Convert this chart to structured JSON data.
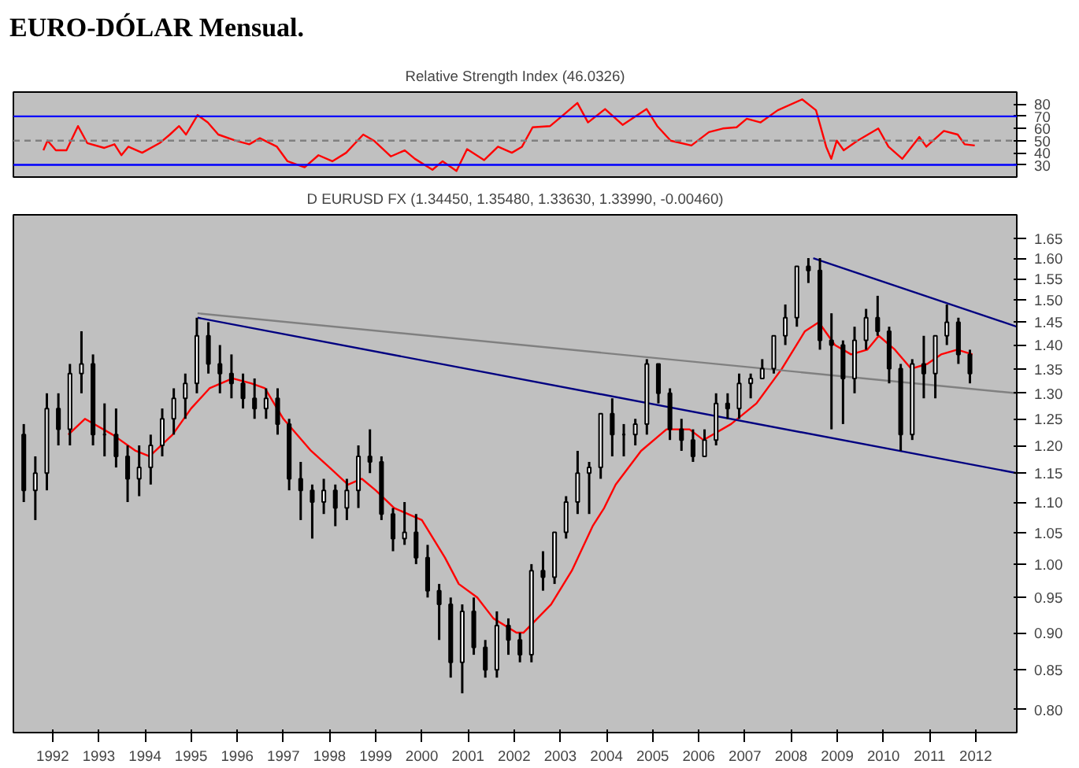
{
  "chart_data": [
    {
      "type": "line",
      "title": "EURO-DÓLAR Mensual.",
      "subtitle": "Relative Strength Index (46.0326)",
      "xlim": [
        1991.15,
        2012.89
      ],
      "ylim": [
        20,
        90
      ],
      "yticks": [
        30,
        40,
        50,
        60,
        70,
        80
      ],
      "tick_labels": "y",
      "series": [
        {
          "color": "#ff0000",
          "x": [
            1991.8,
            1991.89,
            1992.07,
            1992.3,
            1992.55,
            1992.75,
            1993.12,
            1993.34,
            1993.49,
            1993.64,
            1993.94,
            1994.32,
            1994.54,
            1994.74,
            1994.89,
            1995.14,
            1995.36,
            1995.59,
            1995.96,
            1996.26,
            1996.49,
            1996.86,
            1997.09,
            1997.46,
            1997.76,
            1998.06,
            1998.36,
            1998.73,
            1998.96,
            1999.33,
            1999.63,
            1999.85,
            2000.23,
            2000.45,
            2000.75,
            2000.98,
            2001.35,
            2001.65,
            2001.95,
            2002.17,
            2002.4,
            2002.78,
            2003.03,
            2003.37,
            2003.6,
            2003.97,
            2004.35,
            2004.87,
            2005.1,
            2005.39,
            2005.84,
            2006.22,
            2006.52,
            2006.82,
            2007.04,
            2007.34,
            2007.71,
            2008.24,
            2008.54,
            2008.76,
            2008.87,
            2008.99,
            2009.14,
            2009.44,
            2009.89,
            2010.11,
            2010.41,
            2010.78,
            2010.93,
            2011.31,
            2011.61,
            2011.76,
            2011.98
          ],
          "values": [
            42,
            50,
            42,
            42,
            62,
            48,
            44,
            47,
            38,
            45,
            40,
            48,
            55,
            62,
            55,
            71,
            65,
            55,
            50,
            47,
            52,
            45,
            33,
            28,
            38,
            33,
            40,
            55,
            50,
            37,
            42,
            35,
            26,
            33,
            25,
            43,
            34,
            45,
            40,
            45,
            61,
            62,
            70,
            81,
            65,
            76,
            63,
            76,
            62,
            50,
            46,
            57,
            60,
            61,
            68,
            65,
            75,
            84,
            75,
            45,
            35,
            50,
            42,
            50,
            60,
            45,
            35,
            53,
            45,
            58,
            55,
            47,
            46
          ]
        }
      ],
      "ref_lines": [
        {
          "axis": "y",
          "value": 70,
          "color": "#0000ff",
          "line_style": "solid"
        },
        {
          "axis": "y",
          "value": 30,
          "color": "#0000ff",
          "line_style": "solid"
        },
        {
          "axis": "y",
          "value": 50,
          "color": "#808080",
          "line_style": "dashed"
        }
      ]
    },
    {
      "type": "candlestick",
      "subtitle": "D EURUSD FX (1.34450, 1.35480, 1.33630, 1.33990, -0.00460)",
      "log": true,
      "xlim": [
        1991.15,
        2012.89
      ],
      "ylim": [
        0.772,
        1.71
      ],
      "xticks": [
        1992,
        1993,
        1994,
        1995,
        1996,
        1997,
        1998,
        1999,
        2000,
        2001,
        2002,
        2003,
        2004,
        2005,
        2006,
        2007,
        2008,
        2009,
        2010,
        2011,
        2012
      ],
      "yticks": [
        {
          "value": 0.8,
          "label": "0.80"
        },
        0.85,
        {
          "value": 0.9,
          "label": "0.90"
        },
        0.95,
        {
          "value": 1.0,
          "label": "1.00"
        },
        1.05,
        {
          "value": 1.1,
          "label": "1.10"
        },
        1.15,
        {
          "value": 1.2,
          "label": "1.20"
        },
        1.25,
        {
          "value": 1.3,
          "label": "1.30"
        },
        1.35,
        {
          "value": 1.4,
          "label": "1.40"
        },
        1.45,
        {
          "value": 1.5,
          "label": "1.50"
        },
        1.55,
        {
          "value": 1.6,
          "label": "1.60"
        },
        1.65
      ],
      "color": "#000000",
      "x": [
        1991.375,
        1991.625,
        1991.875,
        1992.125,
        1992.375,
        1992.625,
        1992.875,
        1993.125,
        1993.375,
        1993.625,
        1993.875,
        1994.125,
        1994.375,
        1994.625,
        1994.875,
        1995.125,
        1995.375,
        1995.625,
        1995.875,
        1996.125,
        1996.375,
        1996.625,
        1996.875,
        1997.125,
        1997.375,
        1997.625,
        1997.875,
        1998.125,
        1998.375,
        1998.625,
        1998.875,
        1999.125,
        1999.375,
        1999.625,
        1999.875,
        2000.125,
        2000.375,
        2000.625,
        2000.875,
        2001.125,
        2001.375,
        2001.625,
        2001.875,
        2002.125,
        2002.375,
        2002.625,
        2002.875,
        2003.125,
        2003.375,
        2003.625,
        2003.875,
        2004.125,
        2004.375,
        2004.625,
        2004.875,
        2005.125,
        2005.375,
        2005.625,
        2005.875,
        2006.125,
        2006.375,
        2006.625,
        2006.875,
        2007.125,
        2007.375,
        2007.625,
        2007.875,
        2008.125,
        2008.375,
        2008.625,
        2008.875,
        2009.125,
        2009.375,
        2009.625,
        2009.875,
        2010.125,
        2010.375,
        2010.625,
        2010.875,
        2011.125,
        2011.375,
        2011.625,
        2011.875
      ],
      "ohlc": [
        [
          1.22,
          1.24,
          1.1,
          1.12
        ],
        [
          1.12,
          1.18,
          1.07,
          1.15
        ],
        [
          1.15,
          1.3,
          1.12,
          1.27
        ],
        [
          1.27,
          1.3,
          1.2,
          1.23
        ],
        [
          1.23,
          1.36,
          1.2,
          1.34
        ],
        [
          1.34,
          1.43,
          1.3,
          1.36
        ],
        [
          1.36,
          1.38,
          1.2,
          1.22
        ],
        [
          1.22,
          1.28,
          1.18,
          1.22
        ],
        [
          1.22,
          1.27,
          1.16,
          1.18
        ],
        [
          1.18,
          1.2,
          1.1,
          1.14
        ],
        [
          1.14,
          1.2,
          1.11,
          1.16
        ],
        [
          1.16,
          1.22,
          1.13,
          1.2
        ],
        [
          1.2,
          1.27,
          1.18,
          1.25
        ],
        [
          1.25,
          1.31,
          1.22,
          1.29
        ],
        [
          1.29,
          1.34,
          1.25,
          1.32
        ],
        [
          1.32,
          1.46,
          1.3,
          1.42
        ],
        [
          1.42,
          1.45,
          1.34,
          1.36
        ],
        [
          1.36,
          1.4,
          1.3,
          1.34
        ],
        [
          1.34,
          1.38,
          1.29,
          1.32
        ],
        [
          1.32,
          1.34,
          1.27,
          1.29
        ],
        [
          1.29,
          1.33,
          1.25,
          1.27
        ],
        [
          1.27,
          1.31,
          1.25,
          1.29
        ],
        [
          1.29,
          1.31,
          1.22,
          1.24
        ],
        [
          1.24,
          1.25,
          1.12,
          1.14
        ],
        [
          1.14,
          1.17,
          1.07,
          1.12
        ],
        [
          1.12,
          1.13,
          1.04,
          1.1
        ],
        [
          1.1,
          1.14,
          1.08,
          1.12
        ],
        [
          1.12,
          1.13,
          1.06,
          1.09
        ],
        [
          1.09,
          1.14,
          1.07,
          1.12
        ],
        [
          1.12,
          1.2,
          1.09,
          1.18
        ],
        [
          1.18,
          1.23,
          1.15,
          1.17
        ],
        [
          1.17,
          1.18,
          1.07,
          1.08
        ],
        [
          1.08,
          1.09,
          1.02,
          1.04
        ],
        [
          1.04,
          1.1,
          1.03,
          1.05
        ],
        [
          1.05,
          1.08,
          1.0,
          1.01
        ],
        [
          1.01,
          1.03,
          0.95,
          0.96
        ],
        [
          0.96,
          0.97,
          0.89,
          0.94
        ],
        [
          0.94,
          0.95,
          0.84,
          0.86
        ],
        [
          0.86,
          0.94,
          0.82,
          0.93
        ],
        [
          0.93,
          0.95,
          0.87,
          0.88
        ],
        [
          0.88,
          0.89,
          0.84,
          0.85
        ],
        [
          0.85,
          0.93,
          0.84,
          0.91
        ],
        [
          0.91,
          0.92,
          0.87,
          0.89
        ],
        [
          0.89,
          0.9,
          0.86,
          0.87
        ],
        [
          0.87,
          1.0,
          0.86,
          0.99
        ],
        [
          0.99,
          1.02,
          0.96,
          0.98
        ],
        [
          0.98,
          1.05,
          0.97,
          1.05
        ],
        [
          1.05,
          1.11,
          1.04,
          1.1
        ],
        [
          1.1,
          1.19,
          1.08,
          1.15
        ],
        [
          1.15,
          1.17,
          1.08,
          1.16
        ],
        [
          1.16,
          1.26,
          1.14,
          1.26
        ],
        [
          1.26,
          1.29,
          1.18,
          1.22
        ],
        [
          1.22,
          1.24,
          1.18,
          1.22
        ],
        [
          1.22,
          1.25,
          1.2,
          1.24
        ],
        [
          1.24,
          1.37,
          1.22,
          1.36
        ],
        [
          1.36,
          1.36,
          1.28,
          1.3
        ],
        [
          1.3,
          1.31,
          1.21,
          1.23
        ],
        [
          1.23,
          1.25,
          1.19,
          1.21
        ],
        [
          1.21,
          1.23,
          1.17,
          1.18
        ],
        [
          1.18,
          1.23,
          1.18,
          1.21
        ],
        [
          1.21,
          1.3,
          1.2,
          1.28
        ],
        [
          1.28,
          1.3,
          1.25,
          1.27
        ],
        [
          1.27,
          1.34,
          1.25,
          1.32
        ],
        [
          1.32,
          1.34,
          1.29,
          1.33
        ],
        [
          1.33,
          1.37,
          1.33,
          1.35
        ],
        [
          1.35,
          1.42,
          1.34,
          1.42
        ],
        [
          1.42,
          1.49,
          1.4,
          1.46
        ],
        [
          1.46,
          1.58,
          1.44,
          1.58
        ],
        [
          1.58,
          1.6,
          1.54,
          1.57
        ],
        [
          1.57,
          1.6,
          1.39,
          1.41
        ],
        [
          1.41,
          1.47,
          1.23,
          1.4
        ],
        [
          1.4,
          1.41,
          1.24,
          1.33
        ],
        [
          1.33,
          1.44,
          1.3,
          1.41
        ],
        [
          1.41,
          1.48,
          1.39,
          1.46
        ],
        [
          1.46,
          1.51,
          1.42,
          1.43
        ],
        [
          1.43,
          1.44,
          1.32,
          1.35
        ],
        [
          1.35,
          1.36,
          1.19,
          1.22
        ],
        [
          1.22,
          1.37,
          1.21,
          1.36
        ],
        [
          1.36,
          1.42,
          1.29,
          1.34
        ],
        [
          1.34,
          1.42,
          1.29,
          1.42
        ],
        [
          1.42,
          1.49,
          1.4,
          1.45
        ],
        [
          1.45,
          1.46,
          1.36,
          1.38
        ],
        [
          1.38,
          1.39,
          1.32,
          1.34
        ]
      ],
      "series": [
        {
          "type": "line",
          "color": "#ff0000",
          "x": [
            1992.34,
            1992.7,
            1993.3,
            1993.8,
            1994.1,
            1994.6,
            1995.0,
            1995.4,
            1995.9,
            1996.3,
            1996.6,
            1997.0,
            1997.6,
            1998.0,
            1998.4,
            1998.7,
            1999.0,
            1999.4,
            2000.0,
            2000.5,
            2000.8,
            2001.2,
            2001.55,
            2002.05,
            2002.2,
            2002.8,
            2003.25,
            2003.7,
            2003.95,
            2004.2,
            2004.75,
            2005.3,
            2005.8,
            2006.1,
            2006.7,
            2007.25,
            2007.8,
            2008.3,
            2008.6,
            2008.95,
            2009.3,
            2009.65,
            2009.9,
            2010.25,
            2010.6,
            2010.95,
            2011.25,
            2011.6,
            2011.93
          ],
          "values": [
            1.22,
            1.25,
            1.22,
            1.19,
            1.18,
            1.22,
            1.27,
            1.31,
            1.33,
            1.32,
            1.31,
            1.25,
            1.19,
            1.16,
            1.13,
            1.14,
            1.12,
            1.09,
            1.07,
            1.01,
            0.97,
            0.95,
            0.92,
            0.9,
            0.9,
            0.94,
            0.99,
            1.06,
            1.09,
            1.13,
            1.19,
            1.23,
            1.23,
            1.21,
            1.24,
            1.28,
            1.35,
            1.43,
            1.45,
            1.4,
            1.38,
            1.39,
            1.42,
            1.39,
            1.35,
            1.36,
            1.38,
            1.39,
            1.38
          ]
        },
        {
          "type": "line",
          "color": "#808080",
          "x": [
            1995.14,
            2012.89
          ],
          "values": [
            1.47,
            1.3
          ]
        },
        {
          "type": "line",
          "color": "#000080",
          "x": [
            1995.14,
            2012.89
          ],
          "values": [
            1.46,
            1.15
          ]
        },
        {
          "type": "line",
          "color": "#000080",
          "x": [
            2008.48,
            2012.89
          ],
          "values": [
            1.6,
            1.44
          ]
        }
      ]
    }
  ]
}
